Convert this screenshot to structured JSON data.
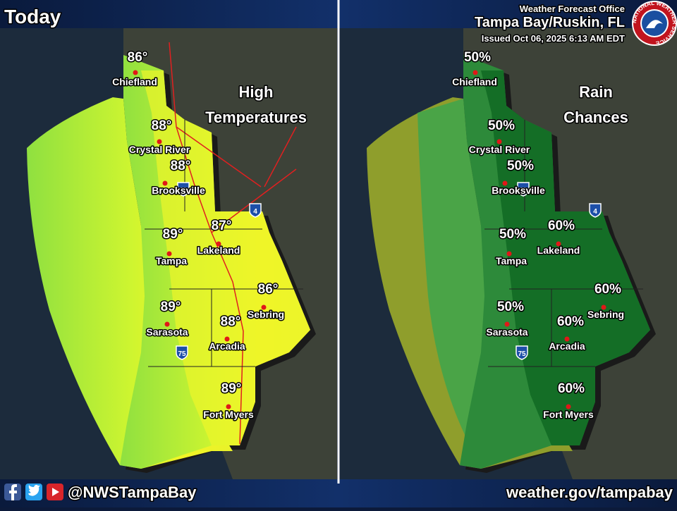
{
  "header": {
    "title": "Today",
    "office": "Weather Forecast Office",
    "location": "Tampa Bay/Ruskin, FL",
    "issued": "Issued Oct 06, 2025 6:13 AM EDT",
    "logo": "NATIONAL WEATHER SERVICE"
  },
  "panels": [
    {
      "title": [
        "High",
        "Temperatures"
      ],
      "shields": [
        "75",
        "75",
        "4"
      ],
      "cities": [
        {
          "name": "Chiefland",
          "value": "86°"
        },
        {
          "name": "Crystal River",
          "value": "88°"
        },
        {
          "name": "Brooksville",
          "value": "88°"
        },
        {
          "name": "Tampa",
          "value": "89°"
        },
        {
          "name": "Lakeland",
          "value": "87°"
        },
        {
          "name": "Sebring",
          "value": "86°"
        },
        {
          "name": "Sarasota",
          "value": "89°"
        },
        {
          "name": "Arcadia",
          "value": "88°"
        },
        {
          "name": "Fort Myers",
          "value": "89°"
        }
      ]
    },
    {
      "title": [
        "Rain",
        "Chances"
      ],
      "shields": [
        "75",
        "75",
        "4"
      ],
      "cities": [
        {
          "name": "Chiefland",
          "value": "50%"
        },
        {
          "name": "Crystal River",
          "value": "50%"
        },
        {
          "name": "Brooksville",
          "value": "50%"
        },
        {
          "name": "Tampa",
          "value": "50%"
        },
        {
          "name": "Lakeland",
          "value": "60%"
        },
        {
          "name": "Sebring",
          "value": "60%"
        },
        {
          "name": "Sarasota",
          "value": "50%"
        },
        {
          "name": "Arcadia",
          "value": "60%"
        },
        {
          "name": "Fort Myers",
          "value": "60%"
        }
      ]
    }
  ],
  "footer": {
    "handle": "@NWSTampaBay",
    "url": "weather.gov/tampabay"
  }
}
